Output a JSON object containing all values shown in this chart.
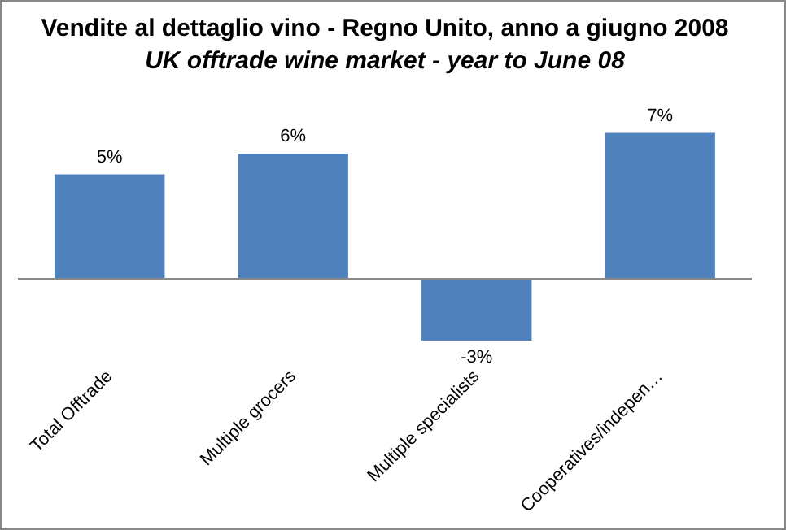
{
  "chart_data": {
    "type": "bar",
    "title": "Vendite al dettaglio vino - Regno Unito, anno a giugno 2008",
    "subtitle": "UK offtrade wine market - year to June 08",
    "categories": [
      "Total Offtrade",
      "Multiple grocers",
      "Multiple specialists",
      "Cooperatives/indepen…"
    ],
    "values": [
      5,
      6,
      -3,
      7
    ],
    "color": "#4f81bd",
    "data_labels": true,
    "value_labels": [
      "5%",
      "6%",
      "-3%",
      "7%"
    ],
    "grid": false,
    "legend": false
  }
}
